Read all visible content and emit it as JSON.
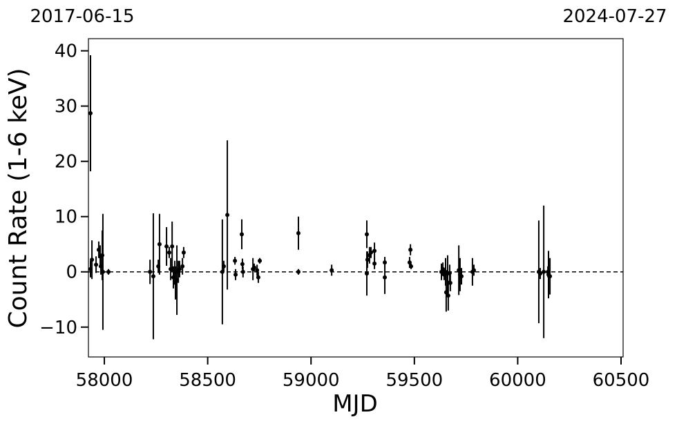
{
  "chart_data": {
    "type": "errorbar_scatter",
    "x_label": "MJD",
    "y_label": "Count Rate (1-6 keV)",
    "annotations": [
      "2017-06-15",
      "2024-07-27"
    ],
    "xlim": [
      57923,
      60510
    ],
    "ylim": [
      -15.4,
      42.2
    ],
    "xticks": [
      58000,
      58500,
      59000,
      59500,
      60000,
      60500
    ],
    "yticks": [
      -10,
      0,
      10,
      20,
      30,
      40
    ],
    "hline": 0,
    "series": [
      {
        "color": "#000000",
        "x": [
          57933,
          57933,
          57940,
          57960,
          57973,
          57980,
          57983,
          57990,
          57993,
          58020,
          58221,
          58237,
          58261,
          58267,
          58301,
          58314,
          58321,
          58328,
          58334,
          58341,
          58344,
          58351,
          58358,
          58364,
          58378,
          58384,
          58571,
          58578,
          58595,
          58632,
          58635,
          58665,
          58668,
          58671,
          58719,
          58725,
          58739,
          58745,
          58752,
          58939,
          58939,
          59100,
          59270,
          59270,
          59273,
          59283,
          59290,
          59307,
          59307,
          59357,
          59357,
          59477,
          59481,
          59484,
          59631,
          59638,
          59644,
          59651,
          59654,
          59661,
          59664,
          59671,
          59674,
          59715,
          59721,
          59728,
          59781,
          59788,
          60102,
          60109,
          60126,
          60146,
          60149,
          60156
        ],
        "values": [
          28.7,
          0.5,
          2.2,
          1.3,
          4,
          2.8,
          1,
          3,
          0,
          0,
          0,
          -0.8,
          1,
          5,
          4.6,
          3.5,
          0.5,
          4.6,
          -1,
          0,
          -2,
          -1.5,
          0,
          0.5,
          1,
          3.5,
          0,
          1,
          10.3,
          2,
          -0.5,
          6.8,
          1.4,
          0,
          0.5,
          0.8,
          0.3,
          -1,
          2,
          7,
          0,
          0.3,
          6.8,
          -0.3,
          2.2,
          3,
          3.5,
          3.8,
          1.5,
          1.7,
          -1,
          1.7,
          4,
          1,
          0,
          0.5,
          -0.5,
          0,
          -3.7,
          -0.3,
          -4.3,
          -0.2,
          -2,
          0.3,
          -0.5,
          -0.8,
          0,
          0.3,
          0,
          -0.3,
          0,
          0,
          -0.5,
          -0.8
        ],
        "errors": [
          10.5,
          1.5,
          3.5,
          1.5,
          1.5,
          2,
          1.5,
          4.5,
          10.5,
          0.5,
          2.2,
          11.4,
          1.2,
          5.5,
          3.5,
          1,
          2,
          4.5,
          2,
          2,
          3,
          6.3,
          2,
          1.5,
          1.5,
          1,
          9.5,
          1,
          13.5,
          0.7,
          1,
          2.7,
          1,
          1,
          2,
          0.7,
          1,
          1,
          0.5,
          3,
          0.5,
          1,
          2.5,
          4,
          1.5,
          1.5,
          1,
          1.5,
          1,
          1,
          3,
          1,
          1,
          0.5,
          1.5,
          1.2,
          1,
          2.5,
          3.5,
          3.3,
          2.7,
          1.5,
          1.5,
          4.5,
          3,
          1.5,
          2.5,
          1,
          9.3,
          1,
          12,
          1,
          4.3,
          3.3
        ]
      }
    ]
  }
}
